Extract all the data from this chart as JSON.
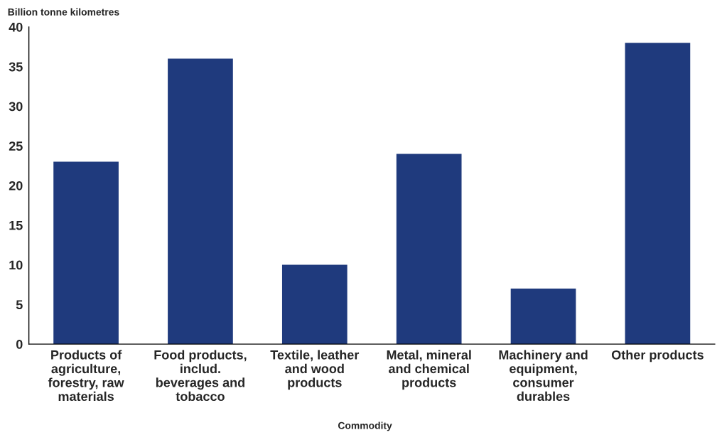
{
  "chart_data": {
    "type": "bar",
    "ylabel": "Billion tonne kilometres",
    "xlabel": "Commodity",
    "categories": [
      "Products of\nagriculture,\nforestry, raw\nmaterials",
      "Food products,\ninclud.\nbeverages and\ntobacco",
      "Textile, leather\nand wood\nproducts",
      "Metal, mineral\nand chemical\nproducts",
      "Machinery and\nequipment,\nconsumer\ndurables",
      "Other products"
    ],
    "values": [
      23,
      36,
      10,
      24,
      7,
      38
    ],
    "color": "#1f3a7d",
    "ylim": [
      0,
      40
    ],
    "yticks": [
      0,
      5,
      10,
      15,
      20,
      25,
      30,
      35,
      40
    ],
    "grid": false,
    "legend": false
  }
}
